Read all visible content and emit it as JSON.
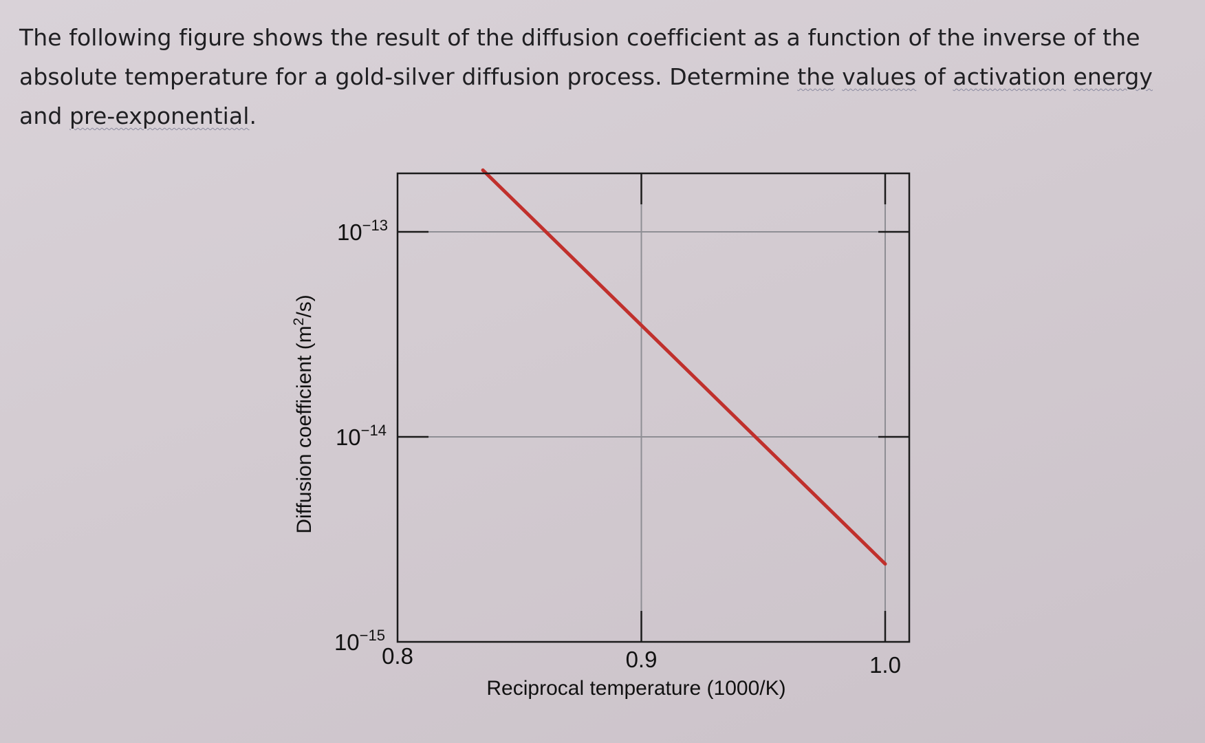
{
  "question": {
    "part1": "The following figure shows the result of the diffusion coefficient as a function of the inverse of the absolute temperature for a gold-silver diffusion process. Determine ",
    "w1": "the",
    "sp1": " ",
    "w2": "values",
    "sp2": " of ",
    "w3": "activation",
    "sp3": " ",
    "w4": "energy",
    "sp4": " and ",
    "w5": "pre-exponential",
    "end": "."
  },
  "chart_data": {
    "type": "line",
    "xlabel": "Reciprocal temperature (1000/K)",
    "ylabel": "Diffusion coefficient (m²/s)",
    "ylabel_base": "Diffusion coefficient (m",
    "ylabel_sup": "2",
    "ylabel_end": "/s)",
    "xlim": [
      0.8,
      1.0
    ],
    "x_ticks": [
      {
        "value": 0.8,
        "label": "0.8"
      },
      {
        "value": 0.9,
        "label": "0.9"
      },
      {
        "value": 1.0,
        "label": "1.0"
      }
    ],
    "y_scale": "log",
    "ylim": [
      1e-15,
      1e-13
    ],
    "y_ticks": [
      {
        "value": 1e-13,
        "base": "10",
        "exp": "−13"
      },
      {
        "value": 1e-14,
        "base": "10",
        "exp": "−14"
      },
      {
        "value": 1e-15,
        "base": "10",
        "exp": "−15"
      }
    ],
    "grid": true,
    "series": [
      {
        "color": "#c0302c",
        "points": [
          {
            "x": 0.835,
            "y": 2e-13
          },
          {
            "x": 1.0,
            "y": 2.4e-15
          }
        ]
      }
    ]
  }
}
